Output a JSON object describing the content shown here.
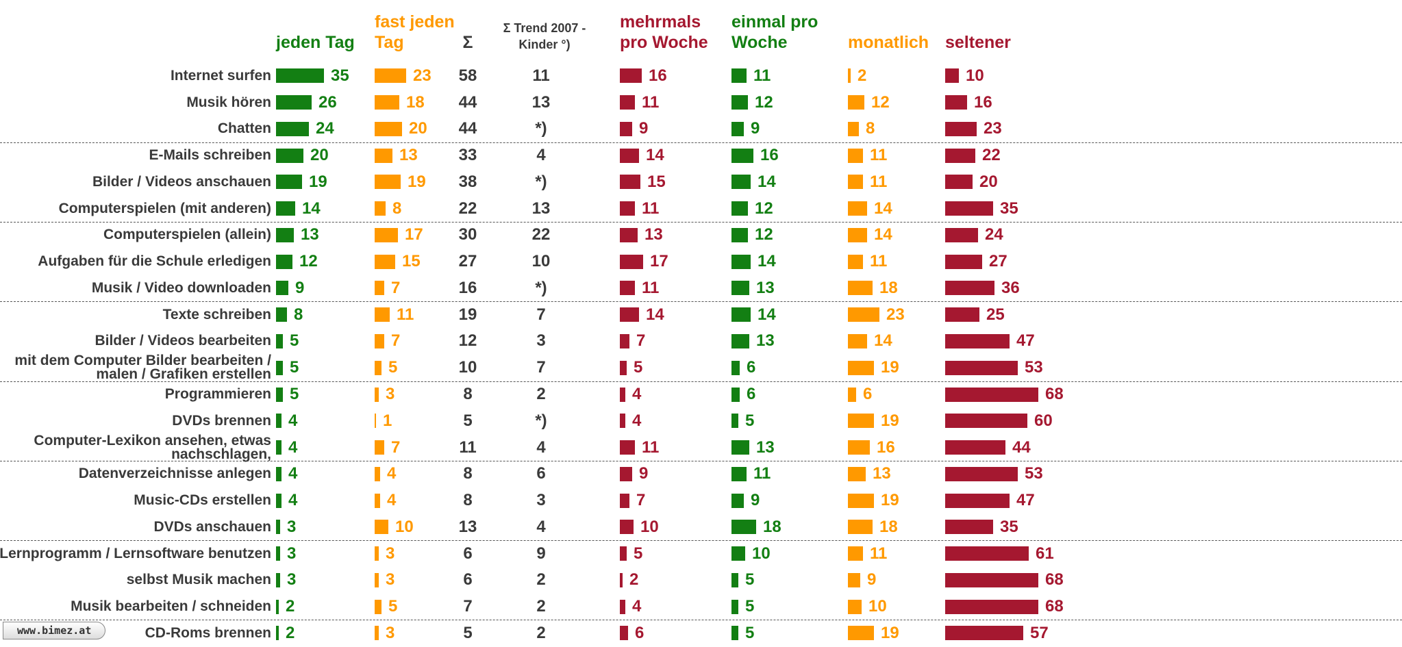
{
  "chart_data": {
    "type": "bar",
    "categories": [
      "Internet surfen",
      "Musik hören",
      "Chatten",
      "E-Mails schreiben",
      "Bilder / Videos anschauen",
      "Computerspielen (mit anderen)",
      "Computerspielen (allein)",
      "Aufgaben für die Schule erledigen",
      "Musik / Video downloaden",
      "Texte schreiben",
      "Bilder / Videos bearbeiten",
      "mit dem Computer Bilder bearbeiten / malen / Grafiken erstellen",
      "Programmieren",
      "DVDs brennen",
      "Computer-Lexikon ansehen, etwas nachschlagen,",
      "Datenverzeichnisse anlegen",
      "Music-CDs erstellen",
      "DVDs anschauen",
      "Lernprogramm / Lernsoftware benutzen",
      "selbst Musik machen",
      "Musik bearbeiten / schneiden",
      "CD-Roms brennen"
    ],
    "series": [
      {
        "name": "jeden Tag",
        "color": "#137f13",
        "values": [
          35,
          26,
          24,
          20,
          19,
          14,
          13,
          12,
          9,
          8,
          5,
          5,
          5,
          4,
          4,
          4,
          4,
          3,
          3,
          3,
          2,
          2
        ]
      },
      {
        "name": "fast jeden Tag",
        "color": "#ff9900",
        "values": [
          23,
          18,
          20,
          13,
          19,
          8,
          17,
          15,
          7,
          11,
          7,
          5,
          3,
          1,
          7,
          4,
          4,
          10,
          3,
          3,
          5,
          3
        ]
      },
      {
        "name": "mehrmals pro Woche",
        "color": "#a51830",
        "values": [
          16,
          11,
          9,
          14,
          15,
          11,
          13,
          17,
          11,
          14,
          7,
          5,
          4,
          4,
          11,
          9,
          7,
          10,
          5,
          2,
          4,
          6
        ]
      },
      {
        "name": "einmal pro Woche",
        "color": "#137f13",
        "values": [
          11,
          12,
          9,
          16,
          14,
          12,
          12,
          14,
          13,
          14,
          13,
          6,
          6,
          5,
          13,
          11,
          9,
          18,
          10,
          5,
          5,
          5
        ]
      },
      {
        "name": "monatlich",
        "color": "#ff9900",
        "values": [
          2,
          12,
          8,
          11,
          11,
          14,
          14,
          11,
          18,
          23,
          14,
          19,
          6,
          19,
          16,
          13,
          19,
          18,
          11,
          9,
          10,
          19
        ]
      },
      {
        "name": "seltener",
        "color": "#a51830",
        "values": [
          10,
          16,
          23,
          22,
          20,
          35,
          24,
          27,
          36,
          25,
          47,
          53,
          68,
          60,
          44,
          53,
          47,
          35,
          61,
          68,
          68,
          57
        ]
      }
    ],
    "sum": {
      "name": "Σ",
      "values": [
        58,
        44,
        44,
        33,
        38,
        22,
        30,
        27,
        16,
        19,
        12,
        10,
        8,
        5,
        11,
        8,
        8,
        13,
        6,
        6,
        7,
        5
      ]
    },
    "trend": {
      "name": "Σ Trend 2007 - Kinder °)",
      "values": [
        11,
        13,
        "*)",
        4,
        "*)",
        13,
        22,
        10,
        "*)",
        7,
        3,
        7,
        2,
        "*)",
        4,
        6,
        3,
        4,
        9,
        2,
        2,
        2
      ]
    },
    "logo": "www.bimez.at"
  }
}
